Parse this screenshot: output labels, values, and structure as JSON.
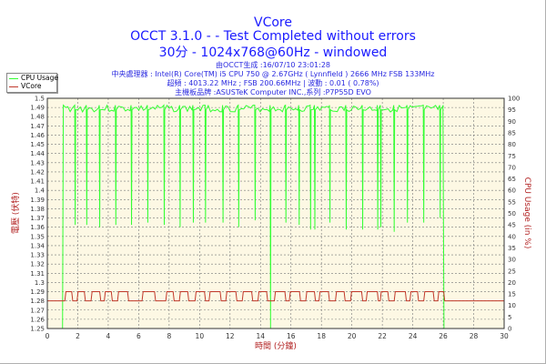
{
  "chart_data": {
    "type": "line",
    "title": "VCore",
    "subtitle": "OCCT 3.1.0 -  - Test Completed without errors",
    "subtitle2": "30分 - 1024x768@60Hz - windowed",
    "info": [
      "由OCCT生成 :16/07/10 23:01:28",
      "中央處理器 : Intel(R) Core(TM) i5 CPU 750 @ 2.67GHz ( Lynnfield ) 2666 MHz FSB 133MHz",
      "超頻 : 4013.22 MHz ; FSB 200.66MHz | 波動 : 0.01 ( 0.78%)",
      "主機板品牌 :ASUSTeK Computer INC.,系列 :P7P55D EVO"
    ],
    "xlabel": "時間 (分鐘)",
    "ylabel": "電壓 (伏特)",
    "y2label": "CPU Usage (in %)",
    "xlim": [
      0,
      30
    ],
    "ylim": [
      1.25,
      1.5
    ],
    "y2lim": [
      0,
      100
    ],
    "x_ticks": [
      "0",
      "2",
      "4",
      "6",
      "8",
      "10",
      "12",
      "14",
      "16",
      "18",
      "20",
      "22",
      "24",
      "26",
      "28",
      "30"
    ],
    "y_ticks": [
      "1.25",
      "1.26",
      "1.27",
      "1.28",
      "1.29",
      "1.3",
      "1.31",
      "1.32",
      "1.33",
      "1.34",
      "1.35",
      "1.36",
      "1.37",
      "1.38",
      "1.39",
      "1.4",
      "1.41",
      "1.42",
      "1.43",
      "1.44",
      "1.45",
      "1.46",
      "1.47",
      "1.48",
      "1.49",
      "1.5"
    ],
    "y2_ticks": [
      "0",
      "5",
      "10",
      "15",
      "20",
      "25",
      "30",
      "35",
      "40",
      "45",
      "50",
      "55",
      "60",
      "65",
      "70",
      "75",
      "80",
      "85",
      "90",
      "95",
      "100"
    ],
    "grid": true,
    "legend_position": "top-left",
    "legend": [
      "CPU Usage",
      "VCore"
    ],
    "colors": {
      "cpu": "#33ff33",
      "vcore": "#c0392b",
      "axis_label": "#b22222",
      "title": "#1a1aff",
      "plot_bg": "#fdf8e4"
    },
    "series": [
      {
        "name": "VCore",
        "axis": "left",
        "base": 1.28,
        "high": 1.29,
        "high_intervals": [
          [
            1.15,
            1.67
          ],
          [
            1.95,
            2.5
          ],
          [
            2.87,
            3.51
          ],
          [
            3.74,
            4.27
          ],
          [
            4.61,
            5.34
          ],
          [
            6.22,
            7.11
          ],
          [
            7.78,
            8.33
          ],
          [
            8.67,
            9.29
          ],
          [
            9.7,
            10.39
          ],
          [
            10.62,
            11.42
          ],
          [
            11.72,
            12.45
          ],
          [
            12.8,
            13.49
          ],
          [
            13.83,
            14.47
          ],
          [
            14.91,
            15.67
          ],
          [
            15.89,
            16.63
          ],
          [
            16.97,
            17.61
          ],
          [
            17.84,
            18.53
          ],
          [
            18.92,
            19.56
          ],
          [
            19.91,
            20.71
          ],
          [
            20.94,
            21.74
          ],
          [
            21.86,
            22.43
          ],
          [
            22.78,
            23.58
          ],
          [
            23.81,
            24.38
          ],
          [
            24.72,
            25.41
          ],
          [
            25.64,
            26.1
          ]
        ]
      },
      {
        "name": "CPU Usage",
        "axis": "right",
        "start": 1.0,
        "end": 26.05,
        "level": 97,
        "dips": [
          [
            1.83,
            45
          ],
          [
            2.59,
            45
          ],
          [
            3.44,
            44
          ],
          [
            4.5,
            45
          ],
          [
            5.53,
            45
          ],
          [
            6.6,
            46
          ],
          [
            7.68,
            45
          ],
          [
            8.72,
            44
          ],
          [
            9.59,
            46
          ],
          [
            10.39,
            46
          ],
          [
            11.54,
            46
          ],
          [
            12.57,
            44
          ],
          [
            13.65,
            47
          ],
          [
            14.66,
            0
          ],
          [
            15.67,
            46
          ],
          [
            16.54,
            45
          ],
          [
            17.29,
            43
          ],
          [
            17.57,
            43
          ],
          [
            18.56,
            46
          ],
          [
            19.63,
            43
          ],
          [
            20.71,
            43
          ],
          [
            21.7,
            43
          ],
          [
            21.9,
            44
          ],
          [
            22.78,
            42
          ],
          [
            23.65,
            46
          ],
          [
            24.72,
            46
          ],
          [
            25.8,
            48
          ]
        ]
      }
    ]
  }
}
